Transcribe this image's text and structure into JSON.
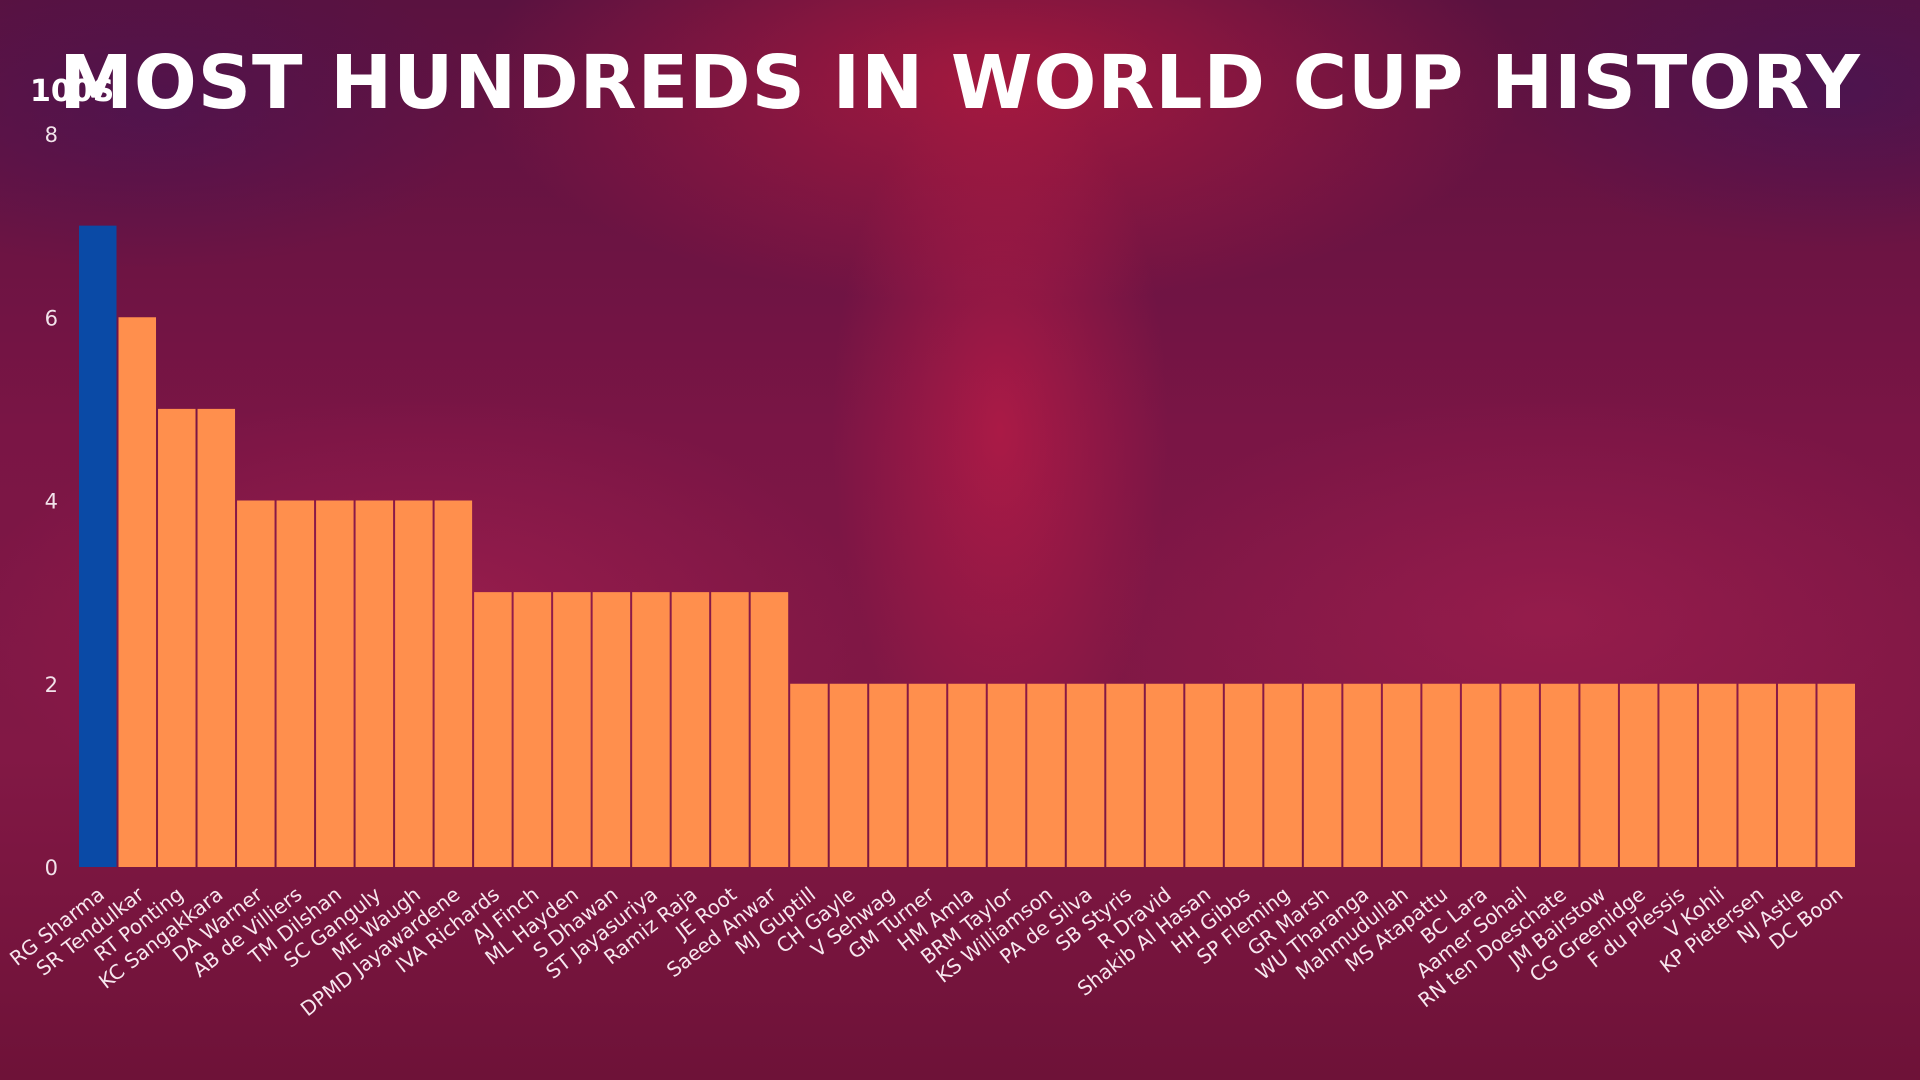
{
  "chart_data": {
    "type": "bar",
    "title": "Most Hundreds in World Cup History",
    "ylabel": "100s",
    "xlabel": "",
    "ylim": [
      0,
      8
    ],
    "yticks": [
      0,
      2,
      4,
      6,
      8
    ],
    "grid": false,
    "legend": "none",
    "colors": {
      "highlight": "#0a4aa6",
      "default": "#ff8f4d"
    },
    "highlight_index": 0,
    "categories": [
      "RG Sharma",
      "SR Tendulkar",
      "RT Ponting",
      "KC Sangakkara",
      "DA Warner",
      "AB de Villiers",
      "TM Dilshan",
      "SC Ganguly",
      "ME Waugh",
      "DPMD Jayawardene",
      "IVA Richards",
      "AJ Finch",
      "ML Hayden",
      "S Dhawan",
      "ST Jayasuriya",
      "Ramiz Raja",
      "JE Root",
      "Saeed Anwar",
      "MJ Guptill",
      "CH Gayle",
      "V Sehwag",
      "GM Turner",
      "HM Amla",
      "BRM Taylor",
      "KS Williamson",
      "PA de Silva",
      "SB Styris",
      "R Dravid",
      "Shakib Al Hasan",
      "HH Gibbs",
      "SP Fleming",
      "GR Marsh",
      "WU Tharanga",
      "Mahmudullah",
      "MS Atapattu",
      "BC Lara",
      "Aamer Sohail",
      "RN ten Doeschate",
      "JM Bairstow",
      "CG Greenidge",
      "F du Plessis",
      "V Kohli",
      "KP Pietersen",
      "NJ Astle",
      "DC Boon"
    ],
    "values": [
      7,
      6,
      5,
      5,
      4,
      4,
      4,
      4,
      4,
      4,
      3,
      3,
      3,
      3,
      3,
      3,
      3,
      3,
      2,
      2,
      2,
      2,
      2,
      2,
      2,
      2,
      2,
      2,
      2,
      2,
      2,
      2,
      2,
      2,
      2,
      2,
      2,
      2,
      2,
      2,
      2,
      2,
      2,
      2,
      2
    ]
  }
}
